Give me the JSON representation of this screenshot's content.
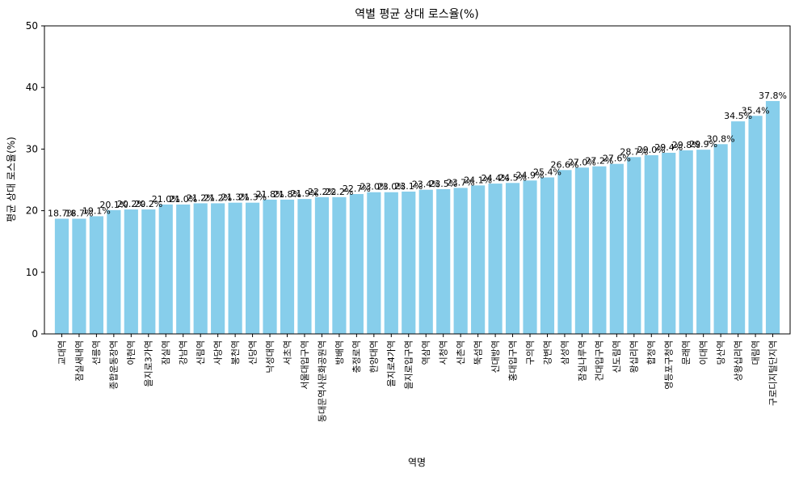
{
  "chart_data": {
    "type": "bar",
    "title": "역별 평균 상대 로스율(%)",
    "xlabel": "역명",
    "ylabel": "평균 상대 로스율(%)",
    "ylim": [
      0,
      50
    ],
    "yticks": [
      0,
      10,
      20,
      30,
      40,
      50
    ],
    "grid": false,
    "color": "#87ceeb",
    "categories": [
      "교대역",
      "잠실새내역",
      "선릉역",
      "종합운동장역",
      "아현역",
      "을지로3가역",
      "잠실역",
      "강남역",
      "신림역",
      "사당역",
      "봉천역",
      "신당역",
      "낙성대역",
      "서초역",
      "서울대입구역",
      "동대문역사문화공원역",
      "방배역",
      "충정로역",
      "한양대역",
      "을지로4가역",
      "을지로입구역",
      "역삼역",
      "시청역",
      "신촌역",
      "뚝섬역",
      "신대방역",
      "홍대입구역",
      "구의역",
      "강변역",
      "삼성역",
      "잠실나루역",
      "건대입구역",
      "신도림역",
      "왕십리역",
      "합정역",
      "영등포구청역",
      "문래역",
      "이대역",
      "당산역",
      "상왕십리역",
      "대림역",
      "구로디지털단지역"
    ],
    "values": [
      18.7,
      18.7,
      19.1,
      20.1,
      20.2,
      20.2,
      21.0,
      21.0,
      21.2,
      21.2,
      21.3,
      21.3,
      21.8,
      21.8,
      21.9,
      22.2,
      22.2,
      22.7,
      23.0,
      23.0,
      23.1,
      23.4,
      23.5,
      23.7,
      24.1,
      24.4,
      24.5,
      24.9,
      25.4,
      26.6,
      27.0,
      27.2,
      27.6,
      28.7,
      29.0,
      29.4,
      29.8,
      29.9,
      30.8,
      34.5,
      35.4,
      37.8
    ],
    "data_labels": [
      "18.7%",
      "18.7%",
      "19.1%",
      "20.1%",
      "20.2%",
      "20.2%",
      "21.0%",
      "21.0%",
      "21.2%",
      "21.2%",
      "21.3%",
      "21.3%",
      "21.8%",
      "21.8%",
      "21.9%",
      "22.2%",
      "22.2%",
      "22.7%",
      "23.0%",
      "23.0%",
      "23.1%",
      "23.4%",
      "23.5%",
      "23.7%",
      "24.1%",
      "24.4%",
      "24.5%",
      "24.9%",
      "25.4%",
      "26.6%",
      "27.0%",
      "27.2%",
      "27.6%",
      "28.7%",
      "29.0%",
      "29.4%",
      "29.8%",
      "29.9%",
      "30.8%",
      "34.5%",
      "35.4%",
      "37.8%"
    ]
  }
}
